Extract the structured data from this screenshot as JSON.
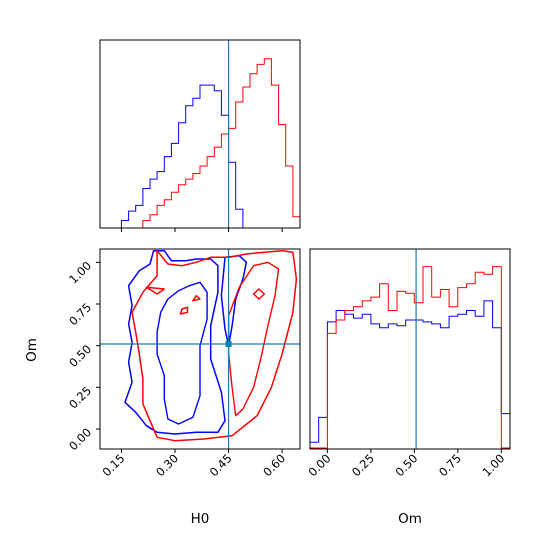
{
  "colors": {
    "blue": "#0000ff",
    "red": "#ff0000",
    "truth": "#1f77b4",
    "frame": "#000000"
  },
  "chart_data": [
    {
      "type": "histogram",
      "panel": "H0 marginal",
      "xlim": [
        0.09,
        0.65
      ],
      "xticks": [
        "0.15",
        "0.30",
        "0.45",
        "0.60"
      ],
      "ylim": [
        0,
        1
      ],
      "truth": 0.45,
      "x": [
        0.09,
        0.11,
        0.13,
        0.15,
        0.17,
        0.19,
        0.21,
        0.23,
        0.25,
        0.27,
        0.29,
        0.31,
        0.33,
        0.35,
        0.37,
        0.39,
        0.41,
        0.43,
        0.45,
        0.47,
        0.49,
        0.51,
        0.53,
        0.55,
        0.57,
        0.59,
        0.61,
        0.63,
        0.65
      ],
      "series": [
        {
          "color": "blue",
          "values": [
            0.0,
            0.0,
            0.0,
            0.04,
            0.09,
            0.12,
            0.21,
            0.26,
            0.3,
            0.38,
            0.45,
            0.56,
            0.65,
            0.69,
            0.76,
            0.76,
            0.73,
            0.6,
            0.35,
            0.1,
            0.0,
            0.0,
            0.0,
            0.0,
            0.0,
            0.0,
            0.0,
            0.0
          ]
        },
        {
          "color": "red",
          "values": [
            0.0,
            0.0,
            0.0,
            0.0,
            0.0,
            0.0,
            0.04,
            0.07,
            0.12,
            0.15,
            0.19,
            0.23,
            0.26,
            0.29,
            0.33,
            0.38,
            0.43,
            0.5,
            0.53,
            0.67,
            0.75,
            0.82,
            0.87,
            0.9,
            0.76,
            0.55,
            0.33,
            0.06
          ]
        }
      ]
    },
    {
      "type": "contour",
      "panel": "Om vs H0",
      "xlabel": "H0",
      "ylabel": "Om",
      "xlim": [
        0.09,
        0.65
      ],
      "ylim": [
        -0.12,
        1.08
      ],
      "xticks": [
        "0.15",
        "0.30",
        "0.45",
        "0.60"
      ],
      "yticks": [
        "0.00",
        "0.25",
        "0.50",
        "0.75",
        "1.00"
      ],
      "truth": {
        "x": 0.45,
        "y": 0.51
      },
      "series": [
        {
          "color": "blue",
          "level": "outer",
          "points": [
            [
              0.24,
              1.07
            ],
            [
              0.27,
              1.07
            ],
            [
              0.29,
              1.01
            ],
            [
              0.33,
              1.01
            ],
            [
              0.36,
              1.02
            ],
            [
              0.4,
              1.02
            ],
            [
              0.42,
              0.98
            ],
            [
              0.42,
              0.82
            ],
            [
              0.4,
              0.62
            ],
            [
              0.4,
              0.42
            ],
            [
              0.43,
              0.22
            ],
            [
              0.44,
              0.05
            ],
            [
              0.42,
              -0.02
            ],
            [
              0.36,
              -0.02
            ],
            [
              0.3,
              -0.03
            ],
            [
              0.25,
              -0.02
            ],
            [
              0.22,
              0.02
            ],
            [
              0.19,
              0.1
            ],
            [
              0.16,
              0.16
            ],
            [
              0.18,
              0.28
            ],
            [
              0.17,
              0.4
            ],
            [
              0.18,
              0.52
            ],
            [
              0.17,
              0.63
            ],
            [
              0.18,
              0.74
            ],
            [
              0.17,
              0.86
            ],
            [
              0.2,
              0.95
            ],
            [
              0.23,
              0.99
            ],
            [
              0.24,
              1.07
            ]
          ]
        },
        {
          "color": "blue",
          "level": "inner",
          "points": [
            [
              0.28,
              0.78
            ],
            [
              0.31,
              0.83
            ],
            [
              0.34,
              0.86
            ],
            [
              0.37,
              0.88
            ],
            [
              0.39,
              0.82
            ],
            [
              0.39,
              0.66
            ],
            [
              0.37,
              0.5
            ],
            [
              0.37,
              0.35
            ],
            [
              0.37,
              0.2
            ],
            [
              0.35,
              0.07
            ],
            [
              0.31,
              0.03
            ],
            [
              0.28,
              0.06
            ],
            [
              0.27,
              0.18
            ],
            [
              0.27,
              0.32
            ],
            [
              0.25,
              0.45
            ],
            [
              0.25,
              0.58
            ],
            [
              0.26,
              0.7
            ],
            [
              0.28,
              0.78
            ]
          ]
        },
        {
          "color": "blue",
          "level": "outer",
          "points": [
            [
              0.44,
              1.03
            ],
            [
              0.48,
              1.04
            ],
            [
              0.5,
              1.0
            ],
            [
              0.49,
              0.9
            ],
            [
              0.47,
              0.78
            ],
            [
              0.46,
              0.62
            ],
            [
              0.45,
              0.5
            ],
            [
              0.44,
              0.6
            ],
            [
              0.43,
              0.8
            ],
            [
              0.44,
              1.03
            ]
          ]
        },
        {
          "color": "red",
          "level": "outer",
          "points": [
            [
              0.25,
              1.07
            ],
            [
              0.28,
              0.99
            ],
            [
              0.32,
              0.98
            ],
            [
              0.36,
              1.0
            ],
            [
              0.4,
              1.03
            ],
            [
              0.45,
              1.03
            ],
            [
              0.5,
              1.05
            ],
            [
              0.55,
              1.06
            ],
            [
              0.6,
              1.07
            ],
            [
              0.63,
              1.06
            ],
            [
              0.64,
              0.9
            ],
            [
              0.63,
              0.7
            ],
            [
              0.6,
              0.45
            ],
            [
              0.57,
              0.25
            ],
            [
              0.53,
              0.08
            ],
            [
              0.46,
              -0.04
            ],
            [
              0.38,
              -0.06
            ],
            [
              0.3,
              -0.07
            ],
            [
              0.25,
              -0.05
            ],
            [
              0.23,
              0.05
            ],
            [
              0.21,
              0.15
            ],
            [
              0.21,
              0.3
            ],
            [
              0.2,
              0.45
            ],
            [
              0.19,
              0.58
            ],
            [
              0.18,
              0.7
            ],
            [
              0.21,
              0.82
            ],
            [
              0.25,
              0.92
            ],
            [
              0.25,
              1.07
            ]
          ]
        },
        {
          "color": "red",
          "level": "inner",
          "points": [
            [
              0.45,
              0.68
            ],
            [
              0.48,
              0.85
            ],
            [
              0.52,
              0.98
            ],
            [
              0.56,
              1.0
            ],
            [
              0.59,
              0.96
            ],
            [
              0.58,
              0.8
            ],
            [
              0.56,
              0.62
            ],
            [
              0.54,
              0.42
            ],
            [
              0.52,
              0.25
            ],
            [
              0.49,
              0.12
            ],
            [
              0.47,
              0.08
            ],
            [
              0.46,
              0.25
            ],
            [
              0.45,
              0.45
            ],
            [
              0.45,
              0.68
            ]
          ]
        },
        {
          "color": "red",
          "level": "island",
          "points": [
            [
              0.52,
              0.81
            ],
            [
              0.535,
              0.84
            ],
            [
              0.55,
              0.81
            ],
            [
              0.535,
              0.78
            ],
            [
              0.52,
              0.81
            ]
          ]
        },
        {
          "color": "red",
          "level": "island",
          "points": [
            [
              0.315,
              0.69
            ],
            [
              0.32,
              0.72
            ],
            [
              0.335,
              0.73
            ],
            [
              0.335,
              0.7
            ],
            [
              0.315,
              0.69
            ]
          ]
        },
        {
          "color": "red",
          "level": "island",
          "points": [
            [
              0.35,
              0.77
            ],
            [
              0.36,
              0.8
            ],
            [
              0.37,
              0.78
            ],
            [
              0.35,
              0.77
            ]
          ]
        },
        {
          "color": "red",
          "level": "island",
          "points": [
            [
              0.22,
              0.85
            ],
            [
              0.27,
              0.84
            ],
            [
              0.25,
              0.81
            ],
            [
              0.22,
              0.85
            ]
          ]
        }
      ]
    },
    {
      "type": "histogram",
      "panel": "Om marginal",
      "xlabel": "Om",
      "xlim": [
        -0.1,
        1.05
      ],
      "xticks": [
        "0.00",
        "0.25",
        "0.50",
        "0.75",
        "1.00"
      ],
      "ylim": [
        0,
        1
      ],
      "truth": 0.51,
      "x": [
        -0.1,
        -0.05,
        0.0,
        0.05,
        0.1,
        0.15,
        0.2,
        0.25,
        0.3,
        0.35,
        0.4,
        0.45,
        0.5,
        0.55,
        0.6,
        0.65,
        0.7,
        0.75,
        0.8,
        0.85,
        0.9,
        0.95,
        1.0,
        1.05
      ],
      "series": [
        {
          "color": "blue",
          "values": [
            0.03,
            0.16,
            0.66,
            0.72,
            0.7,
            0.68,
            0.7,
            0.65,
            0.63,
            0.65,
            0.64,
            0.67,
            0.67,
            0.66,
            0.65,
            0.63,
            0.69,
            0.7,
            0.72,
            0.69,
            0.77,
            0.63,
            0.18
          ]
        },
        {
          "color": "red",
          "values": [
            0.0,
            0.0,
            0.6,
            0.67,
            0.72,
            0.74,
            0.77,
            0.79,
            0.86,
            0.72,
            0.82,
            0.81,
            0.76,
            0.95,
            0.79,
            0.83,
            0.74,
            0.84,
            0.86,
            0.92,
            0.91,
            0.95,
            0.0
          ]
        }
      ]
    }
  ]
}
